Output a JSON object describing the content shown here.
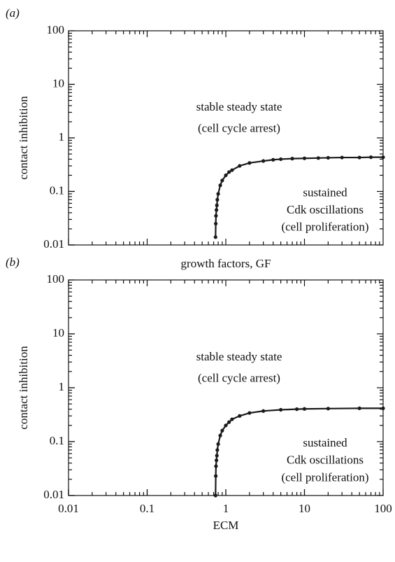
{
  "chart_data": [
    {
      "type": "line",
      "panel_label": "(a)",
      "x_label": "growth factors, GF",
      "y_label": "contact inhibition",
      "annotations": [
        "stable steady state",
        "(cell cycle arrest)",
        "sustained",
        "Cdk oscillations",
        "(cell proliferation)"
      ],
      "xscale": "log",
      "yscale": "log",
      "xlim": [
        0.01,
        100
      ],
      "ylim": [
        0.01,
        100
      ],
      "yticks": [
        {
          "value": 0.01,
          "label": "0.01"
        },
        {
          "value": 0.1,
          "label": "0.1"
        },
        1,
        10,
        100
      ],
      "series": [
        {
          "color": "#1a1a1a",
          "x": [
            0.74,
            0.745,
            0.75,
            0.76,
            0.77,
            0.78,
            0.8,
            0.85,
            0.9,
            1,
            1.1,
            1.2,
            1.5,
            2,
            3,
            4,
            5,
            7,
            10,
            15,
            20,
            30,
            50,
            70,
            100
          ],
          "values": [
            0.014,
            0.025,
            0.035,
            0.045,
            0.055,
            0.07,
            0.09,
            0.13,
            0.16,
            0.2,
            0.23,
            0.25,
            0.3,
            0.34,
            0.37,
            0.39,
            0.4,
            0.41,
            0.415,
            0.42,
            0.425,
            0.43,
            0.43,
            0.435,
            0.435
          ]
        }
      ]
    },
    {
      "type": "line",
      "panel_label": "(b)",
      "x_label": "ECM",
      "y_label": "contact inhibition",
      "annotations": [
        "stable steady state",
        "(cell cycle arrest)",
        "sustained",
        "Cdk oscillations",
        "(cell proliferation)"
      ],
      "xscale": "log",
      "yscale": "log",
      "xlim": [
        0.01,
        100
      ],
      "ylim": [
        0.01,
        100
      ],
      "xticks": [
        {
          "value": 0.01,
          "label": "0.01"
        },
        {
          "value": 0.1,
          "label": "0.1"
        },
        1,
        10,
        100
      ],
      "yticks": [
        {
          "value": 0.01,
          "label": "0.01"
        },
        {
          "value": 0.1,
          "label": "0.1"
        },
        1,
        10,
        100
      ],
      "series": [
        {
          "color": "#1a1a1a",
          "x": [
            0.74,
            0.745,
            0.75,
            0.76,
            0.77,
            0.78,
            0.8,
            0.85,
            0.9,
            1,
            1.1,
            1.2,
            1.5,
            2,
            3,
            5,
            8,
            10,
            20,
            50,
            100
          ],
          "values": [
            0.01,
            0.023,
            0.035,
            0.045,
            0.055,
            0.07,
            0.09,
            0.13,
            0.16,
            0.2,
            0.23,
            0.26,
            0.3,
            0.34,
            0.37,
            0.39,
            0.4,
            0.405,
            0.41,
            0.415,
            0.415
          ]
        }
      ]
    }
  ]
}
